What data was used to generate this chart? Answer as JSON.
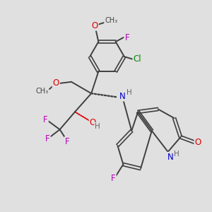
{
  "bg_color": "#e0e0e0",
  "bond_color": "#404040",
  "bond_width": 1.4,
  "atom_colors": {
    "O": "#dd0000",
    "N": "#0000cc",
    "F": "#bb00bb",
    "Cl": "#008800",
    "H": "#666666",
    "C": "#404040"
  },
  "font_size": 8.5,
  "fig_size": [
    3.0,
    3.0
  ],
  "dpi": 100
}
